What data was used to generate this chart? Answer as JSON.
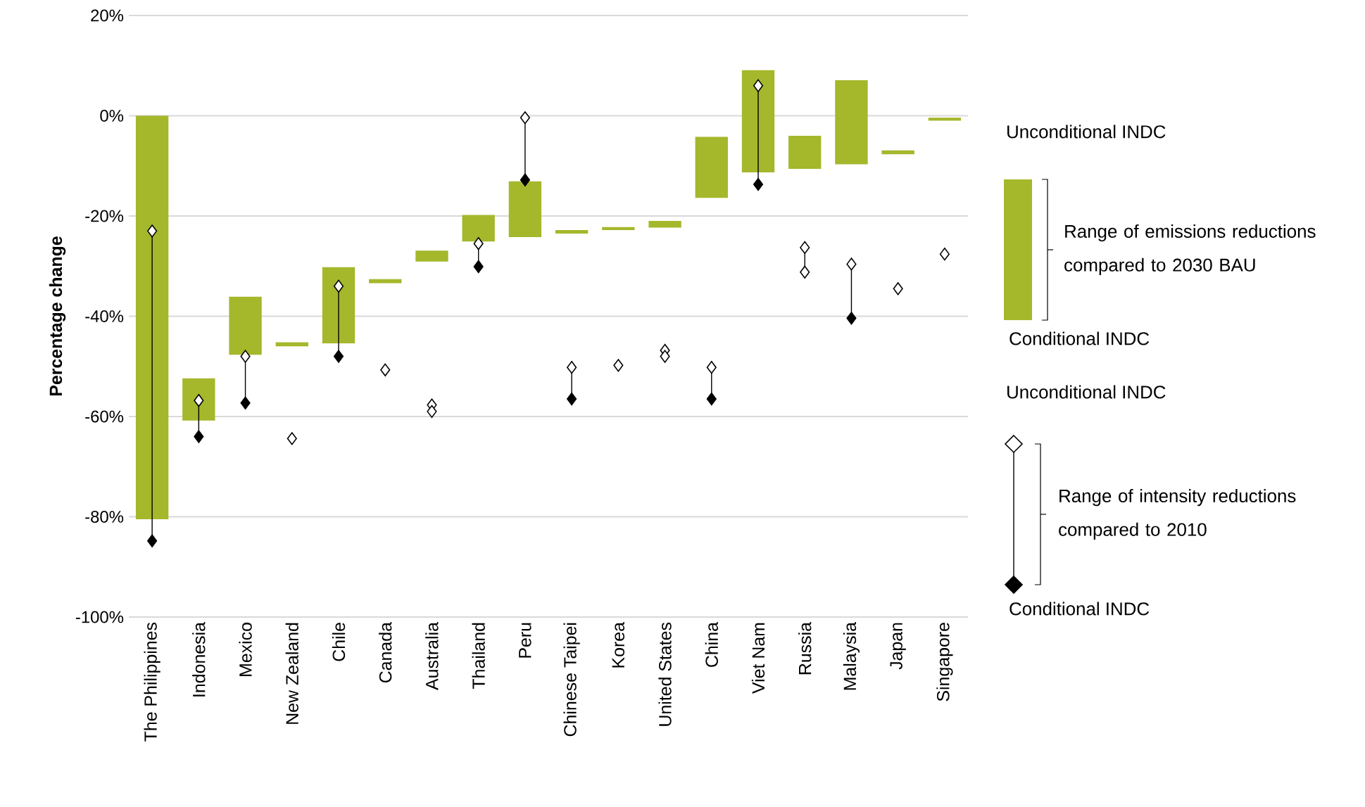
{
  "chart_data": {
    "type": "bar",
    "ylabel": "Percentage change",
    "categories": [
      "The Philippines",
      "Indonesia",
      "Mexico",
      "New Zealand",
      "Chile",
      "Canada",
      "Australia",
      "Thailand",
      "Peru",
      "Chinese Taipei",
      "Korea",
      "United States",
      "China",
      "Viet Nam",
      "Russia",
      "Malaysia",
      "Japan",
      "Singapore"
    ],
    "ylim": [
      -100,
      20
    ],
    "yticks": [
      {
        "value": 20,
        "label": "20%"
      },
      {
        "value": 0,
        "label": "0%"
      },
      {
        "value": -20,
        "label": "-20%"
      },
      {
        "value": -40,
        "label": "-40%"
      },
      {
        "value": -60,
        "label": "-60%"
      },
      {
        "value": -80,
        "label": "-80%"
      },
      {
        "value": -100,
        "label": "-100%"
      }
    ],
    "grid": "y",
    "legend": "right",
    "series": [
      {
        "color": "#a5b72b",
        "base": [
          -80.5,
          -60.8,
          -47.7,
          -46,
          -45.4,
          -33.4,
          -29.1,
          -25.1,
          -24.2,
          -23.5,
          -22.8,
          -22.3,
          -16.4,
          -11.3,
          -10.6,
          -9.7,
          -7.7,
          -1
        ],
        "values": [
          80.5,
          8.4,
          11.6,
          0.8,
          15.2,
          0.8,
          2.2,
          5.3,
          11.1,
          0.7,
          0.6,
          1.3,
          12.2,
          20.4,
          6.6,
          16.8,
          0.8,
          0.6
        ]
      },
      {
        "type": "scatter",
        "name": "Unconditional INDC",
        "color": "#ffffff",
        "marker": "diamond",
        "values": [
          -23,
          -56.8,
          -48,
          -64.4,
          -34,
          -50.7,
          -57.7,
          -25.5,
          -0.4,
          -50.2,
          -49.8,
          -46.8,
          -50.2,
          6,
          -26.3,
          -29.6,
          -34.5,
          -27.6
        ]
      },
      {
        "type": "scatter",
        "name": "Conditional INDC",
        "color": "#000000",
        "marker": "diamond",
        "values": [
          -84.8,
          -64,
          -57.3,
          null,
          -48,
          null,
          null,
          -30.1,
          -12.8,
          -56.5,
          null,
          null,
          -56.5,
          -13.7,
          null,
          -40.4,
          null,
          null
        ]
      },
      {
        "type": "scatter",
        "color": "#ffffff",
        "marker": "diamond",
        "values": [
          null,
          null,
          null,
          null,
          null,
          null,
          -59,
          null,
          null,
          null,
          null,
          -48,
          null,
          null,
          -31.2,
          null,
          null,
          null
        ]
      }
    ],
    "annotations": [
      "Unconditional INDC",
      "Range of emissions reductions compared to 2030 BAU",
      "Conditional INDC",
      "Range of intensity reductions compared to 2010"
    ]
  }
}
